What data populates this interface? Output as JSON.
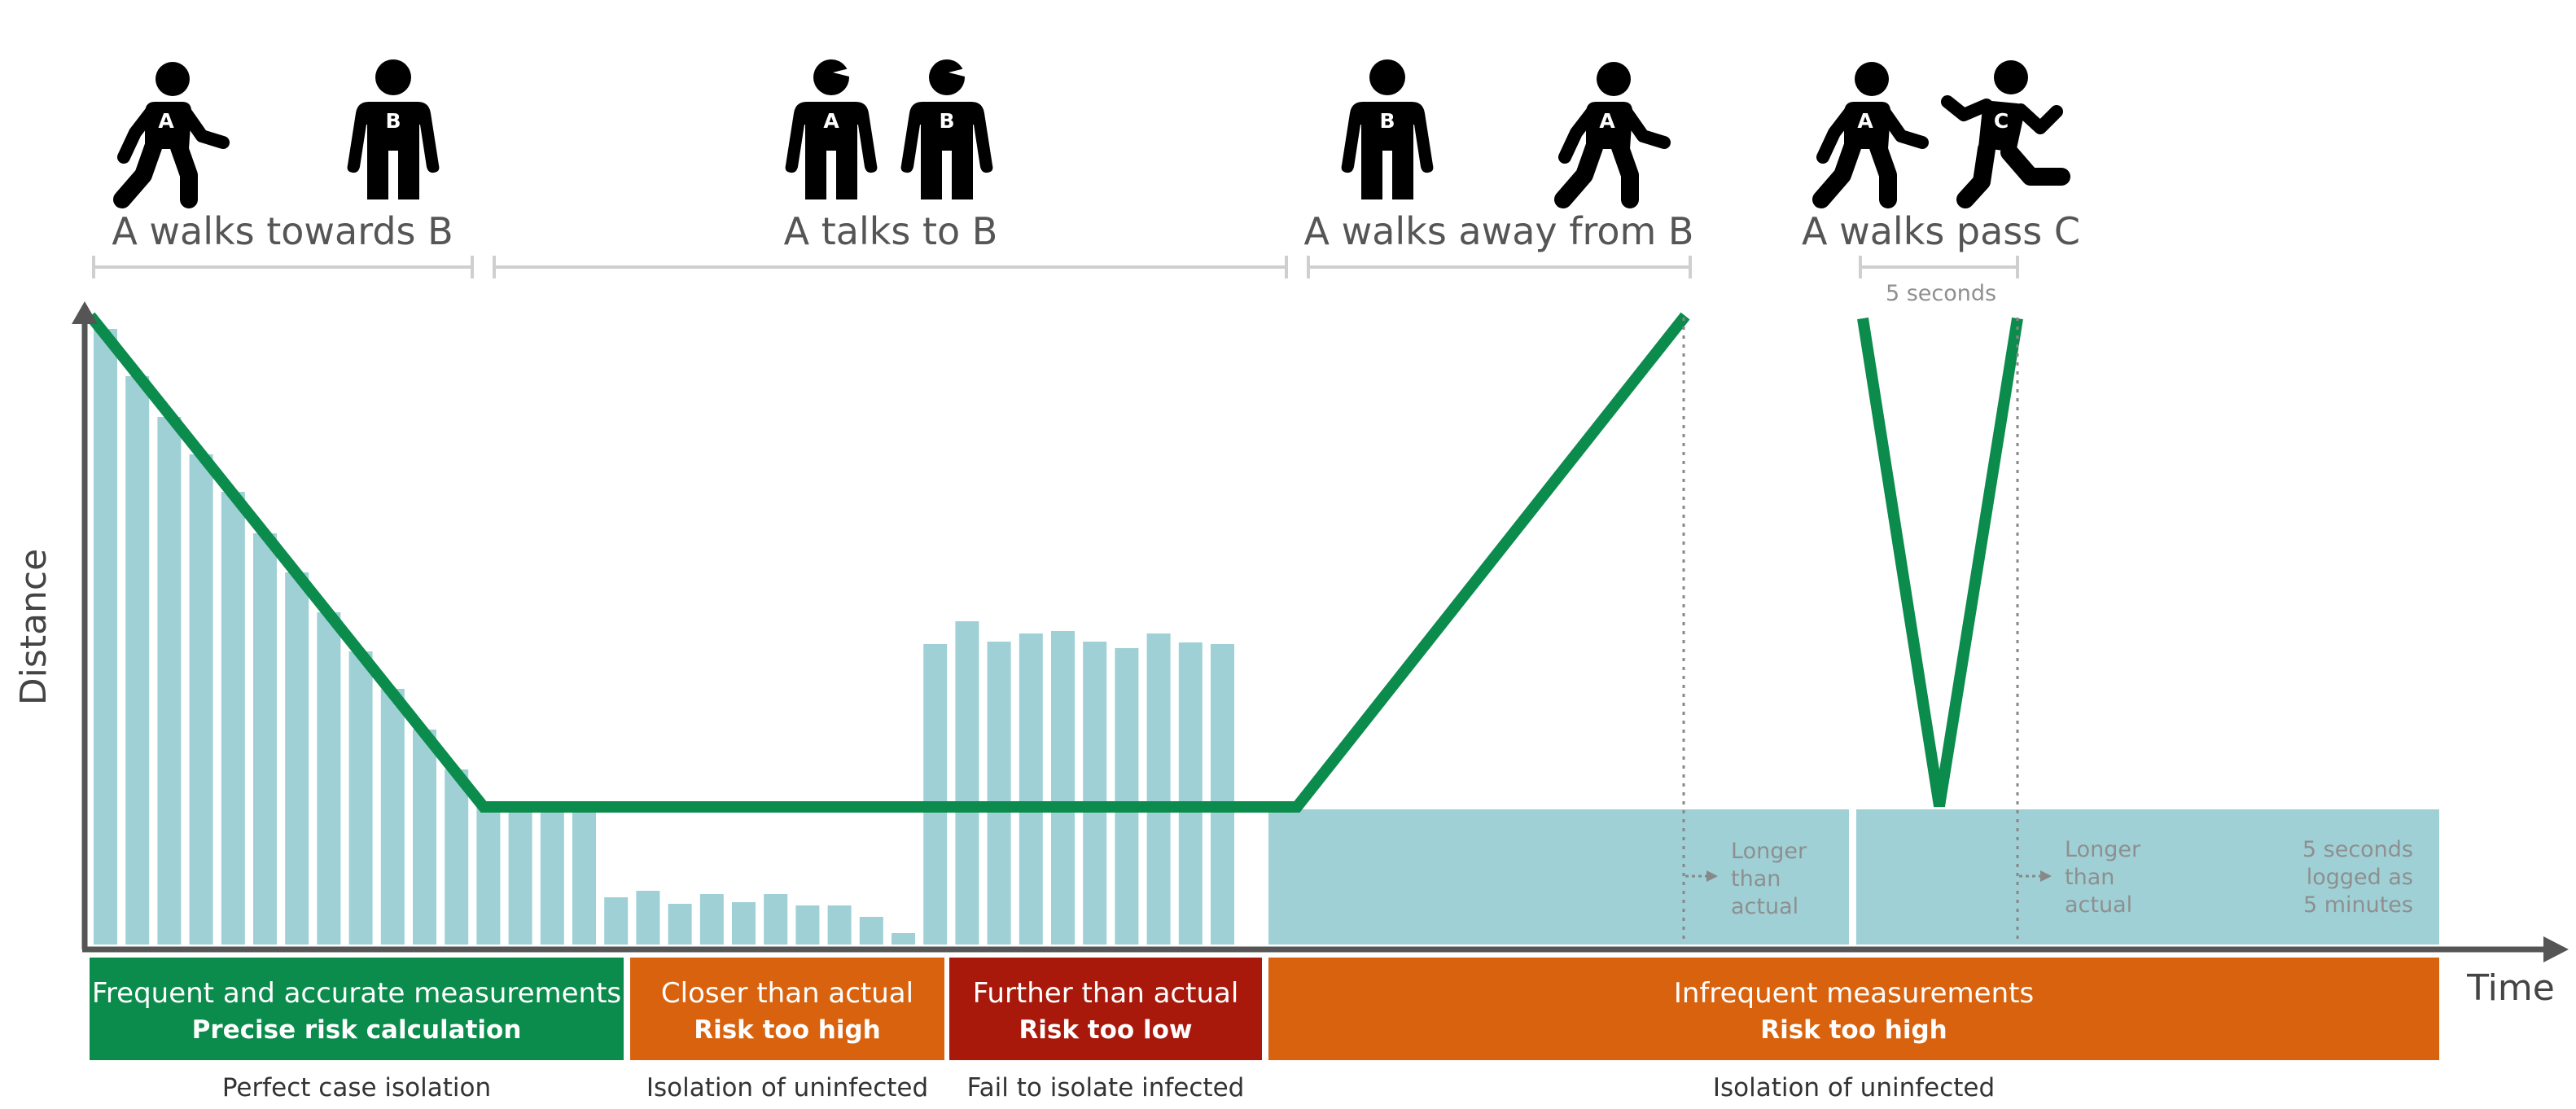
{
  "phases": [
    {
      "label": "A walks towards B"
    },
    {
      "label": "A talks to B"
    },
    {
      "label": "A walks away from B"
    },
    {
      "label": "A walks pass C"
    }
  ],
  "interval_label": "5 seconds",
  "axes": {
    "y_label": "Distance",
    "x_label": "Time"
  },
  "people": {
    "a": "A",
    "b": "B",
    "c": "C"
  },
  "notes": {
    "longer": [
      "Longer",
      "than",
      "actual"
    ],
    "logged": [
      "5 seconds",
      "logged as",
      "5 minutes"
    ]
  },
  "bands": [
    {
      "line1": "Frequent and accurate measurements",
      "line2": "Precise risk calculation",
      "color": "#0b8c4c",
      "outcome": "Perfect case isolation"
    },
    {
      "line1": "Closer than actual",
      "line2": "Risk too high",
      "color": "#d9620e",
      "outcome": "Isolation of uninfected"
    },
    {
      "line1": "Further than actual",
      "line2": "Risk too low",
      "color": "#a8190c",
      "outcome": "Fail to isolate infected"
    },
    {
      "line1": "Infrequent measurements",
      "line2": "Risk too high",
      "color": "#d9620e",
      "outcome": "Isolation of uninfected"
    }
  ],
  "colors": {
    "actual_distance": "#0b8c4c",
    "measured_distance": "#9ed0d6",
    "axis": "#555555"
  },
  "icons": [
    "walking-person-icon",
    "standing-person-icon",
    "talking-person-icon",
    "running-person-icon"
  ]
}
